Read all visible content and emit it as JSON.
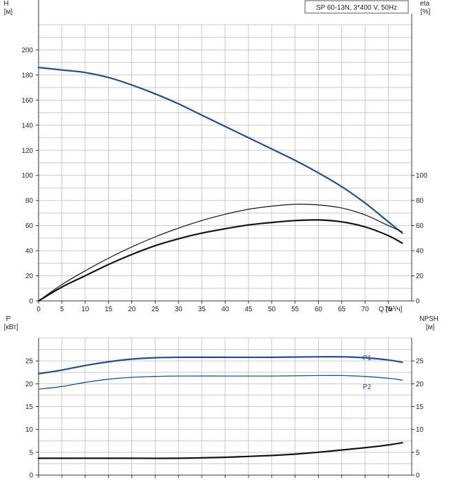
{
  "header": {
    "model_label": "SP 60-13N, 3*400 V, 50Hz"
  },
  "colors": {
    "blue": "#1f4e8c",
    "black": "#111111",
    "grid": "#c8c8c8",
    "axis": "#333333"
  },
  "chart_data": [
    {
      "id": "top",
      "type": "line",
      "xlabel": "Q [м³/ч]",
      "ylabel_left": [
        "H",
        "[м]"
      ],
      "ylabel_right": [
        "eta",
        "[%]"
      ],
      "xlim": [
        0,
        80
      ],
      "ylim": [
        0,
        220
      ],
      "x_ticks": [
        0,
        5,
        10,
        15,
        20,
        25,
        30,
        35,
        40,
        45,
        50,
        55,
        60,
        65,
        70,
        75
      ],
      "y_ticks_left": [
        0,
        20,
        40,
        60,
        80,
        100,
        120,
        140,
        160,
        180,
        200
      ],
      "y_ticks_right": [
        0,
        20,
        40,
        60,
        80,
        100
      ],
      "grid": true,
      "series": [
        {
          "key": "H",
          "color": "blue",
          "width": 2.2,
          "x": [
            0,
            5,
            10,
            15,
            20,
            25,
            30,
            35,
            40,
            45,
            50,
            55,
            60,
            65,
            70,
            75,
            78
          ],
          "y": [
            186,
            184,
            182,
            178,
            172,
            165,
            157,
            148,
            139,
            130,
            121,
            112,
            102,
            91,
            78,
            63,
            54
          ]
        },
        {
          "key": "eta_thin",
          "color": "black",
          "width": 1.2,
          "x": [
            0,
            5,
            10,
            15,
            20,
            25,
            30,
            35,
            40,
            45,
            50,
            55,
            60,
            65,
            70,
            75,
            78
          ],
          "y": [
            0,
            13,
            24,
            34,
            43,
            51,
            58,
            64,
            69,
            73,
            75.5,
            77,
            76.5,
            74,
            68.5,
            60,
            55
          ]
        },
        {
          "key": "eta_bold",
          "color": "black",
          "width": 2.2,
          "x": [
            0,
            5,
            10,
            15,
            20,
            25,
            30,
            35,
            40,
            45,
            50,
            55,
            60,
            65,
            70,
            75,
            78
          ],
          "y": [
            0,
            11,
            20,
            29,
            37,
            44,
            49.5,
            54,
            57.5,
            60.5,
            62.5,
            64,
            64.5,
            63,
            59,
            52,
            46
          ]
        }
      ]
    },
    {
      "id": "bottom",
      "type": "line",
      "ylabel_left": [
        "P",
        "[кВт]"
      ],
      "ylabel_right": [
        "NPSH",
        "[м]"
      ],
      "xlim": [
        0,
        80
      ],
      "ylim": [
        0,
        30
      ],
      "x_ticks": [
        0,
        5,
        10,
        15,
        20,
        25,
        30,
        35,
        40,
        45,
        50,
        55,
        60,
        65,
        70,
        75
      ],
      "y_ticks_left": [
        0,
        5,
        10,
        15,
        20,
        25
      ],
      "y_ticks_right": [
        0,
        5,
        10,
        15,
        20,
        25
      ],
      "grid": true,
      "series": [
        {
          "key": "P1",
          "name": "P1",
          "color": "blue",
          "width": 2.2,
          "x": [
            0,
            5,
            10,
            15,
            20,
            25,
            30,
            40,
            50,
            60,
            65,
            70,
            75,
            78
          ],
          "y": [
            22.2,
            23.0,
            24.0,
            24.8,
            25.4,
            25.7,
            25.8,
            25.8,
            25.8,
            25.9,
            25.9,
            25.7,
            25.2,
            24.7
          ]
        },
        {
          "key": "P2",
          "name": "P2",
          "color": "blue",
          "width": 1.3,
          "x": [
            0,
            5,
            10,
            15,
            20,
            25,
            30,
            40,
            50,
            60,
            65,
            70,
            75,
            78
          ],
          "y": [
            18.8,
            19.4,
            20.3,
            21.0,
            21.4,
            21.6,
            21.7,
            21.7,
            21.7,
            21.8,
            21.8,
            21.6,
            21.2,
            20.8
          ]
        },
        {
          "key": "NPSH",
          "color": "black",
          "width": 2.2,
          "x": [
            0,
            5,
            10,
            20,
            30,
            40,
            45,
            50,
            55,
            60,
            65,
            70,
            75,
            78
          ],
          "y": [
            3.7,
            3.7,
            3.7,
            3.7,
            3.7,
            3.9,
            4.1,
            4.3,
            4.6,
            5.0,
            5.5,
            6.0,
            6.6,
            7.1
          ]
        }
      ]
    }
  ]
}
